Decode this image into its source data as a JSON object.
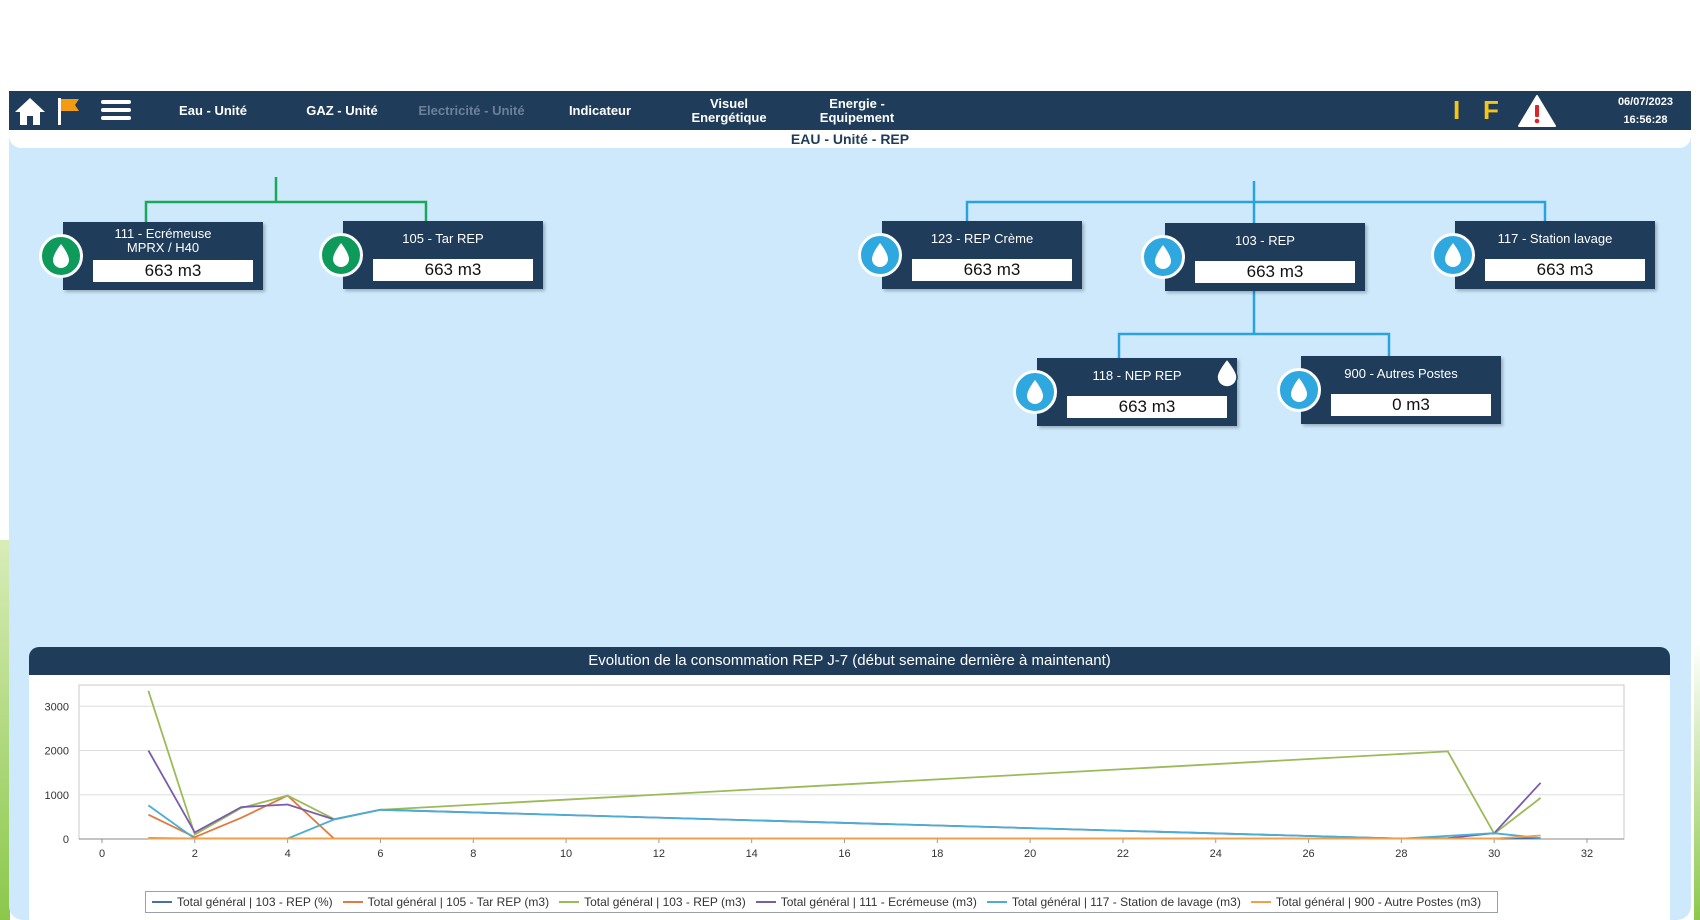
{
  "navbar": {
    "items": [
      {
        "label": "Eau - Unité"
      },
      {
        "label": "GAZ - Unité"
      },
      {
        "label": "Electricité - Unité"
      },
      {
        "label": "Indicateur"
      },
      {
        "label": "Visuel\nEnergétique"
      },
      {
        "label": "Energie -\nEquipement"
      }
    ],
    "indicator_i": "I",
    "indicator_f": "F",
    "date": "06/07/2023",
    "time": "16:56:28",
    "icons": [
      "home-icon",
      "flag-icon",
      "menu-icon",
      "warning-icon"
    ]
  },
  "page_title": "EAU - Unité - REP",
  "tree": {
    "colors": {
      "green": "#0e9a5a",
      "blue": "#2fa8df",
      "line_green": "#1aa85a",
      "line_blue": "#2aa3dd"
    },
    "nodes": [
      {
        "title": "111 - Ecrémeuse\nMPRX / H40",
        "value": "663 m3"
      },
      {
        "title": "105 - Tar REP",
        "value": "663 m3"
      },
      {
        "title": "123 - REP Crème",
        "value": "663 m3"
      },
      {
        "title": "103 - REP",
        "value": "663 m3"
      },
      {
        "title": "117 - Station lavage",
        "value": "663 m3"
      },
      {
        "title": "118 - NEP REP",
        "value": "663 m3"
      },
      {
        "title": "900 - Autres Postes",
        "value": "0 m3"
      }
    ]
  },
  "chart_data": {
    "type": "line",
    "title": "Evolution de la consommation REP J-7 (début semaine dernière à maintenant)",
    "xlim": [
      0,
      32
    ],
    "ylim": [
      0,
      3300
    ],
    "x_ticks": [
      0,
      2,
      4,
      6,
      8,
      10,
      12,
      14,
      16,
      18,
      20,
      22,
      24,
      26,
      28,
      30,
      32
    ],
    "y_ticks": [
      0,
      1000,
      2000,
      3000
    ],
    "grid": true,
    "legend_position": "bottom",
    "series": [
      {
        "name": "Total général | 103 - REP (%)",
        "color": "#4a6fa5",
        "points": [
          [
            1,
            20
          ],
          [
            2,
            10
          ],
          [
            4,
            10
          ],
          [
            6,
            10
          ],
          [
            29,
            10
          ],
          [
            30,
            10
          ],
          [
            31,
            20
          ]
        ]
      },
      {
        "name": "Total général | 105 - Tar REP (m3)",
        "color": "#e07a3f",
        "points": [
          [
            1,
            550
          ],
          [
            2,
            40
          ],
          [
            3,
            480
          ],
          [
            4,
            980
          ],
          [
            5,
            10
          ]
        ]
      },
      {
        "name": "Total général | 103 - REP (m3)",
        "color": "#9bbb59",
        "points": [
          [
            1,
            3350
          ],
          [
            2,
            100
          ],
          [
            3,
            700
          ],
          [
            4,
            980
          ],
          [
            5,
            450
          ],
          [
            6,
            660
          ],
          [
            29,
            1980
          ],
          [
            30,
            120
          ],
          [
            31,
            930
          ]
        ]
      },
      {
        "name": "Total général | 111 - Ecrémeuse (m3)",
        "color": "#7a5cad",
        "points": [
          [
            1,
            2000
          ],
          [
            2,
            150
          ],
          [
            3,
            720
          ],
          [
            4,
            780
          ],
          [
            5,
            440
          ],
          [
            6,
            660
          ],
          [
            28,
            10
          ],
          [
            29,
            20
          ],
          [
            30,
            130
          ],
          [
            31,
            1270
          ]
        ]
      },
      {
        "name": "Total général | 117 - Station de lavage (m3)",
        "color": "#4aaed4",
        "points": [
          [
            1,
            760
          ],
          [
            2,
            10
          ],
          [
            4,
            10
          ],
          [
            5,
            440
          ],
          [
            6,
            660
          ],
          [
            28,
            10
          ],
          [
            30,
            130
          ],
          [
            31,
            20
          ]
        ]
      },
      {
        "name": "Total général | 900 - Autre Postes (m3)",
        "color": "#f0a04b",
        "points": [
          [
            1,
            10
          ],
          [
            2,
            10
          ],
          [
            29,
            10
          ],
          [
            30,
            10
          ],
          [
            31,
            80
          ]
        ]
      }
    ]
  }
}
